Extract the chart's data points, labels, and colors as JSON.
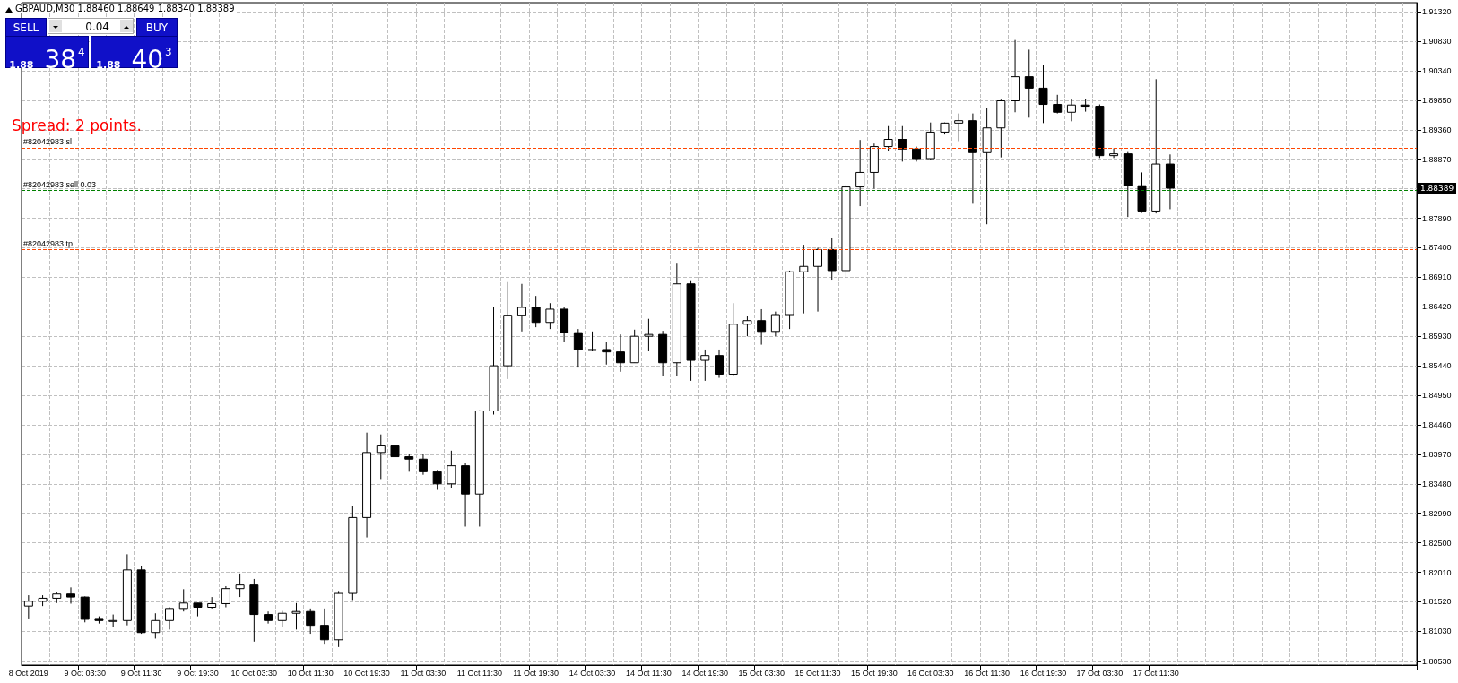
{
  "chart_data": {
    "type": "candlestick",
    "title": "GBPAUD,M30  1.88460 1.88649 1.88340 1.88389",
    "color": "#000000",
    "grid": true,
    "categories": [
      "8 Oct 2019",
      null,
      null,
      null,
      "9 Oct 03:30",
      null,
      null,
      null,
      "9 Oct 11:30",
      null,
      null,
      null,
      "9 Oct 19:30",
      null,
      null,
      null,
      "10 Oct 03:30",
      null,
      null,
      null,
      "10 Oct 11:30",
      null,
      null,
      null,
      "10 Oct 19:30",
      null,
      null,
      null,
      "11 Oct 03:30",
      null,
      null,
      null,
      "11 Oct 11:30",
      null,
      null,
      null,
      "11 Oct 19:30",
      null,
      null,
      null,
      "14 Oct 03:30",
      null,
      null,
      null,
      "14 Oct 11:30",
      null,
      null,
      null,
      "14 Oct 19:30",
      null,
      null,
      null,
      "15 Oct 03:30",
      null,
      null,
      null,
      "15 Oct 11:30",
      null,
      null,
      null,
      "15 Oct 19:30",
      null,
      null,
      null,
      "16 Oct 03:30",
      null,
      null,
      null,
      "16 Oct 11:30",
      null,
      null,
      null,
      "16 Oct 19:30",
      null,
      null,
      null,
      "17 Oct 03:30",
      null,
      null,
      null,
      "17 Oct 11:30",
      null,
      null,
      null,
      null,
      null,
      null,
      null,
      null,
      null,
      null,
      null,
      null,
      null,
      null,
      null,
      null,
      null,
      null
    ],
    "ohlc": [
      [
        1.8145,
        1.8163,
        1.8123,
        1.8153
      ],
      [
        1.8153,
        1.8163,
        1.8145,
        1.8158
      ],
      [
        1.8158,
        1.8168,
        1.815,
        1.8165
      ],
      [
        1.8165,
        1.8176,
        1.8149,
        1.816
      ],
      [
        1.816,
        1.8161,
        1.8118,
        1.8123
      ],
      [
        1.8123,
        1.8128,
        1.8116,
        1.8121
      ],
      [
        1.8121,
        1.8131,
        1.8111,
        1.8121
      ],
      [
        1.8121,
        1.8231,
        1.8113,
        1.8205
      ],
      [
        1.8205,
        1.8211,
        1.8099,
        1.8101
      ],
      [
        1.8101,
        1.8133,
        1.8091,
        1.8121
      ],
      [
        1.8121,
        1.8143,
        1.8106,
        1.8141
      ],
      [
        1.8141,
        1.8173,
        1.8136,
        1.815
      ],
      [
        1.815,
        1.815,
        1.8128,
        1.8143
      ],
      [
        1.8143,
        1.816,
        1.8141,
        1.8149
      ],
      [
        1.8149,
        1.8178,
        1.8143,
        1.8174
      ],
      [
        1.8174,
        1.8199,
        1.816,
        1.818
      ],
      [
        1.818,
        1.819,
        1.8086,
        1.8131
      ],
      [
        1.8131,
        1.8136,
        1.8116,
        1.8121
      ],
      [
        1.8121,
        1.8137,
        1.8111,
        1.8133
      ],
      [
        1.8133,
        1.815,
        1.8106,
        1.8136
      ],
      [
        1.8136,
        1.8141,
        1.8099,
        1.8113
      ],
      [
        1.8113,
        1.8141,
        1.8081,
        1.8089
      ],
      [
        1.8089,
        1.817,
        1.8077,
        1.8166
      ],
      [
        1.8166,
        1.8311,
        1.8155,
        1.8292
      ],
      [
        1.8292,
        1.8433,
        1.8259,
        1.84
      ],
      [
        1.84,
        1.843,
        1.8356,
        1.8411
      ],
      [
        1.8411,
        1.8418,
        1.8378,
        1.8393
      ],
      [
        1.8393,
        1.8397,
        1.8368,
        1.8389
      ],
      [
        1.8389,
        1.8397,
        1.8363,
        1.8368
      ],
      [
        1.8368,
        1.8371,
        1.8338,
        1.8348
      ],
      [
        1.8348,
        1.8403,
        1.8341,
        1.8378
      ],
      [
        1.8378,
        1.8383,
        1.8277,
        1.8331
      ],
      [
        1.8331,
        1.847,
        1.8277,
        1.8469
      ],
      [
        1.8469,
        1.8642,
        1.8463,
        1.8544
      ],
      [
        1.8544,
        1.8683,
        1.8522,
        1.8628
      ],
      [
        1.8628,
        1.868,
        1.8601,
        1.8641
      ],
      [
        1.8641,
        1.866,
        1.8608,
        1.8616
      ],
      [
        1.8616,
        1.8648,
        1.8605,
        1.8638
      ],
      [
        1.8638,
        1.8641,
        1.8583,
        1.8599
      ],
      [
        1.8599,
        1.8605,
        1.8541,
        1.8571
      ],
      [
        1.8571,
        1.8601,
        1.8568,
        1.8571
      ],
      [
        1.8571,
        1.8583,
        1.8546,
        1.8567
      ],
      [
        1.8567,
        1.8596,
        1.8534,
        1.8549
      ],
      [
        1.8549,
        1.8604,
        1.8549,
        1.8593
      ],
      [
        1.8593,
        1.8622,
        1.8568,
        1.8596
      ],
      [
        1.8596,
        1.8602,
        1.8527,
        1.8549
      ],
      [
        1.8549,
        1.8715,
        1.8527,
        1.868
      ],
      [
        1.868,
        1.8686,
        1.8519,
        1.8553
      ],
      [
        1.8553,
        1.8571,
        1.8519,
        1.8561
      ],
      [
        1.8561,
        1.8571,
        1.8524,
        1.853
      ],
      [
        1.853,
        1.8648,
        1.8527,
        1.8613
      ],
      [
        1.8613,
        1.8626,
        1.8593,
        1.8619
      ],
      [
        1.8619,
        1.8638,
        1.8579,
        1.8601
      ],
      [
        1.8601,
        1.8634,
        1.8593,
        1.8629
      ],
      [
        1.8629,
        1.8702,
        1.8605,
        1.87
      ],
      [
        1.87,
        1.8745,
        1.8631,
        1.8709
      ],
      [
        1.8709,
        1.874,
        1.8634,
        1.8737
      ],
      [
        1.8737,
        1.8757,
        1.8687,
        1.8702
      ],
      [
        1.8702,
        1.8845,
        1.869,
        1.8841
      ],
      [
        1.8841,
        1.8919,
        1.8809,
        1.8865
      ],
      [
        1.8865,
        1.8913,
        1.8838,
        1.8908
      ],
      [
        1.8908,
        1.8942,
        1.8901,
        1.892
      ],
      [
        1.892,
        1.8942,
        1.8883,
        1.8904
      ],
      [
        1.8904,
        1.8908,
        1.8883,
        1.8888
      ],
      [
        1.8888,
        1.8948,
        1.8886,
        1.8932
      ],
      [
        1.8932,
        1.8948,
        1.8928,
        1.8947
      ],
      [
        1.8947,
        1.8963,
        1.8917,
        1.8951
      ],
      [
        1.8951,
        1.8963,
        1.8813,
        1.8898
      ],
      [
        1.8898,
        1.8972,
        1.8779,
        1.8939
      ],
      [
        1.8939,
        1.8986,
        1.889,
        1.8984
      ],
      [
        1.8984,
        1.9085,
        1.8965,
        1.9024
      ],
      [
        1.9024,
        1.9069,
        1.8956,
        1.9005
      ],
      [
        1.9005,
        1.9043,
        1.8947,
        1.8978
      ],
      [
        1.8978,
        1.8994,
        1.8963,
        1.8965
      ],
      [
        1.8965,
        1.8987,
        1.895,
        1.8977
      ],
      [
        1.8977,
        1.8987,
        1.8966,
        1.8975
      ],
      [
        1.8975,
        1.8978,
        1.8889,
        1.8893
      ],
      [
        1.8893,
        1.8905,
        1.8889,
        1.8896
      ],
      [
        1.8896,
        1.8899,
        1.8791,
        1.8843
      ],
      [
        1.8843,
        1.8865,
        1.8798,
        1.8801
      ],
      [
        1.8801,
        1.902,
        1.8797,
        1.8879
      ],
      [
        1.8879,
        1.8895,
        1.8804,
        1.88389
      ],
      null,
      null,
      null,
      null,
      null,
      null,
      null,
      null,
      null,
      null,
      null,
      null,
      null,
      null,
      null,
      null,
      null
    ],
    "ylim": [
      1.8047,
      1.9147
    ],
    "yticks": [
      {
        "value": 1.8053,
        "label": "1.80530"
      },
      {
        "value": 1.8103,
        "label": "1.81030"
      },
      {
        "value": 1.8152,
        "label": "1.81520"
      },
      {
        "value": 1.8201,
        "label": "1.82010"
      },
      {
        "value": 1.825,
        "label": "1.82500"
      },
      {
        "value": 1.8299,
        "label": "1.82990"
      },
      {
        "value": 1.8348,
        "label": "1.83480"
      },
      {
        "value": 1.8397,
        "label": "1.83970"
      },
      {
        "value": 1.8446,
        "label": "1.84460"
      },
      {
        "value": 1.8495,
        "label": "1.84950"
      },
      {
        "value": 1.8544,
        "label": "1.85440"
      },
      {
        "value": 1.8593,
        "label": "1.85930"
      },
      {
        "value": 1.8642,
        "label": "1.86420"
      },
      {
        "value": 1.8691,
        "label": "1.86910"
      },
      {
        "value": 1.874,
        "label": "1.87400"
      },
      {
        "value": 1.8789,
        "label": "1.87890"
      },
      {
        "value": 1.8838,
        "label": null
      },
      {
        "value": 1.8887,
        "label": "1.88870"
      },
      {
        "value": 1.8936,
        "label": "1.89360"
      },
      {
        "value": 1.8985,
        "label": "1.89850"
      },
      {
        "value": 1.9034,
        "label": "1.90340"
      },
      {
        "value": 1.9083,
        "label": "1.90830"
      },
      {
        "value": 1.9132,
        "label": "1.91320"
      }
    ],
    "ref_lines": [
      {
        "axis": "y",
        "value": 1.8906,
        "label": "#82042983 sl",
        "color": "#ff4500",
        "line_style": "dashed"
      },
      {
        "axis": "y",
        "value": 1.8835,
        "label": "#82042983 sell 0.03",
        "color": "#008000",
        "line_style": "dashed"
      },
      {
        "axis": "y",
        "value": 1.8737,
        "label": "#82042983 tp",
        "color": "#ff4500",
        "line_style": "dashed"
      }
    ],
    "annotations": [
      "Spread: 2 points.",
      "SELL",
      "0.04",
      "BUY",
      "$_{1.88}$ 38$^{4}$",
      "$_{1.88}$ 40$^{3}$",
      "1.88389"
    ]
  }
}
